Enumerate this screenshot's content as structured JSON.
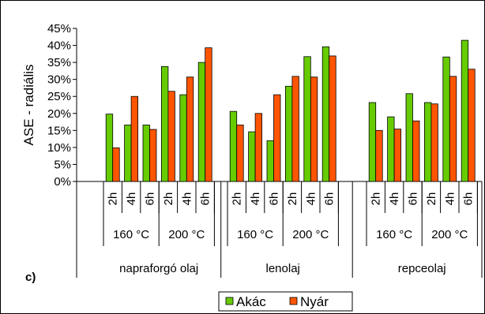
{
  "chart_data": {
    "type": "bar",
    "panel_label": "c)",
    "ylabel": "ASE - radiális",
    "ylim": [
      0,
      45
    ],
    "yticks": [
      "0%",
      "5%",
      "10%",
      "15%",
      "20%",
      "25%",
      "30%",
      "35%",
      "40%",
      "45%"
    ],
    "groups": [
      {
        "name": "napraforgó olaj",
        "temps": [
          {
            "temp": "160 °C",
            "times": [
              "2h",
              "4h",
              "6h"
            ],
            "akac": [
              19.8,
              16.6,
              16.6
            ],
            "nyar": [
              9.9,
              25.0,
              15.3
            ]
          },
          {
            "temp": "200 °C",
            "times": [
              "2h",
              "4h",
              "6h"
            ],
            "akac": [
              33.8,
              25.5,
              35.0
            ],
            "nyar": [
              26.5,
              30.7,
              39.3
            ]
          }
        ]
      },
      {
        "name": "lenolaj",
        "temps": [
          {
            "temp": "160 °C",
            "times": [
              "2h",
              "4h",
              "6h"
            ],
            "akac": [
              20.6,
              14.6,
              12.0
            ],
            "nyar": [
              16.6,
              20.0,
              25.5
            ]
          },
          {
            "temp": "200 °C",
            "times": [
              "2h",
              "4h",
              "6h"
            ],
            "akac": [
              28.0,
              36.7,
              39.6
            ],
            "nyar": [
              30.9,
              30.7,
              36.9
            ]
          }
        ]
      },
      {
        "name": "repceolaj",
        "temps": [
          {
            "temp": "160 °C",
            "times": [
              "2h",
              "4h",
              "6h"
            ],
            "akac": [
              23.2,
              19.0,
              25.8
            ],
            "nyar": [
              15.0,
              15.4,
              17.8
            ]
          },
          {
            "temp": "200 °C",
            "times": [
              "2h",
              "4h",
              "6h"
            ],
            "akac": [
              23.2,
              36.6,
              41.5
            ],
            "nyar": [
              22.8,
              30.9,
              33.0
            ]
          }
        ]
      }
    ],
    "series": [
      {
        "name": "Akác",
        "color": "#66cc00"
      },
      {
        "name": "Nyár",
        "color": "#ff5500"
      }
    ],
    "grid": false,
    "legend_position": "bottom"
  }
}
